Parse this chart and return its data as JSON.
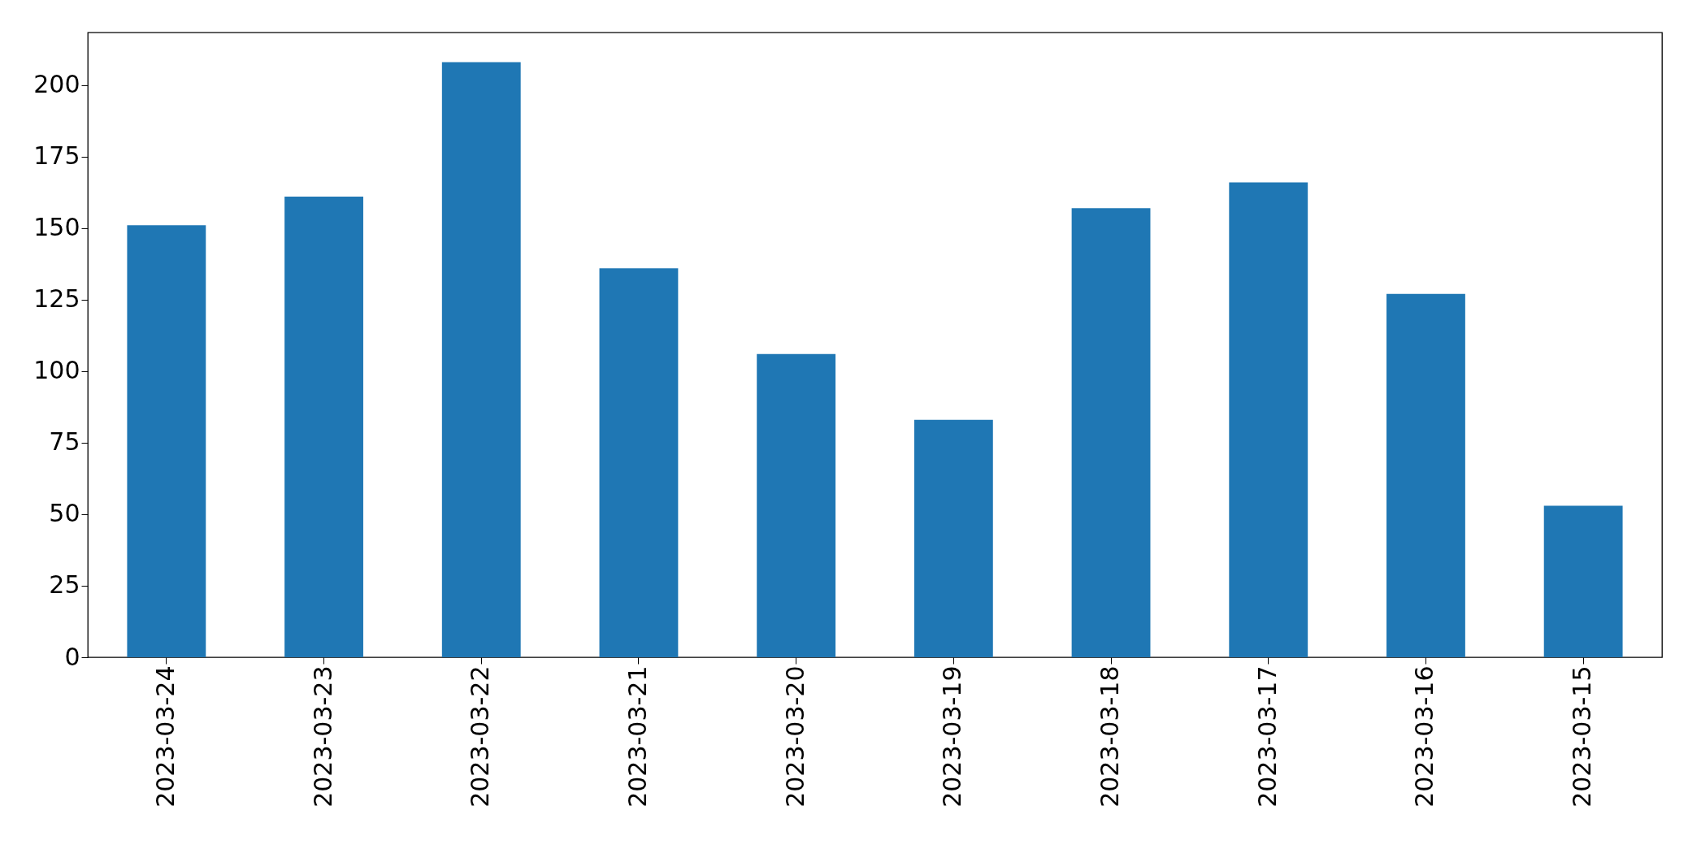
{
  "chart_data": {
    "type": "bar",
    "categories": [
      "2023-03-24",
      "2023-03-23",
      "2023-03-22",
      "2023-03-21",
      "2023-03-20",
      "2023-03-19",
      "2023-03-18",
      "2023-03-17",
      "2023-03-16",
      "2023-03-15"
    ],
    "values": [
      151,
      161,
      208,
      136,
      106,
      83,
      157,
      166,
      127,
      53
    ],
    "color": "#1f77b4",
    "ylim": [
      0,
      218.4
    ],
    "yticks": [
      0,
      25,
      50,
      75,
      100,
      125,
      150,
      175,
      200
    ],
    "grid": false
  }
}
